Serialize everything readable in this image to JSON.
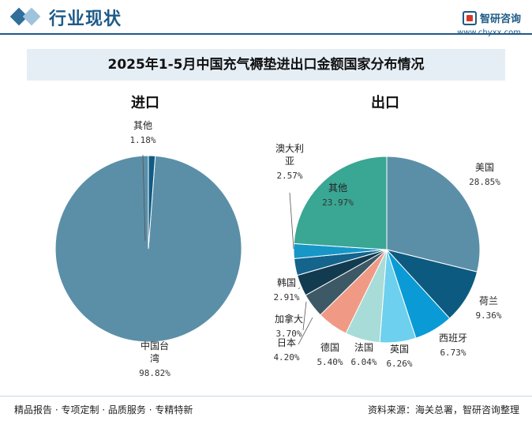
{
  "header": {
    "title": "行业现状",
    "brand_name": "智研咨询",
    "brand_url": "www.chyxx.com",
    "accent": "#1e5a86"
  },
  "chart_title": "2025年1-5月中国充气褥垫进出口金额国家分布情况",
  "footer": {
    "left": "精品报告 · 专项定制 · 品质服务 · 专精特新",
    "right": "资料来源：海关总署，智研咨询整理"
  },
  "chart_data": [
    {
      "type": "pie",
      "title": "进口",
      "unit": "%",
      "slices": [
        {
          "label": "中国台湾",
          "value": 98.82,
          "pct": "98.82%",
          "color": "#5b8fa8"
        },
        {
          "label": "其他",
          "value": 1.18,
          "pct": "1.18%",
          "color": "#0f5b86"
        }
      ]
    },
    {
      "type": "pie",
      "title": "出口",
      "unit": "%",
      "slices": [
        {
          "label": "美国",
          "value": 28.85,
          "pct": "28.85%",
          "color": "#5b8fa8"
        },
        {
          "label": "荷兰",
          "value": 9.36,
          "pct": "9.36%",
          "color": "#0d5a80"
        },
        {
          "label": "西班牙",
          "value": 6.73,
          "pct": "6.73%",
          "color": "#0a9bd6"
        },
        {
          "label": "英国",
          "value": 6.26,
          "pct": "6.26%",
          "color": "#6dd0ee"
        },
        {
          "label": "法国",
          "value": 6.04,
          "pct": "6.04%",
          "color": "#a8dcd8"
        },
        {
          "label": "德国",
          "value": 5.4,
          "pct": "5.40%",
          "color": "#f09a86"
        },
        {
          "label": "日本",
          "value": 4.2,
          "pct": "4.20%",
          "color": "#3d5966"
        },
        {
          "label": "加拿大",
          "value": 3.7,
          "pct": "3.70%",
          "color": "#123b50"
        },
        {
          "label": "韩国",
          "value": 2.91,
          "pct": "2.91%",
          "color": "#14648c"
        },
        {
          "label": "澳大利亚",
          "value": 2.57,
          "pct": "2.57%",
          "color": "#1797c8"
        },
        {
          "label": "其他",
          "value": 23.97,
          "pct": "23.97%",
          "color": "#3aa694"
        }
      ]
    }
  ]
}
